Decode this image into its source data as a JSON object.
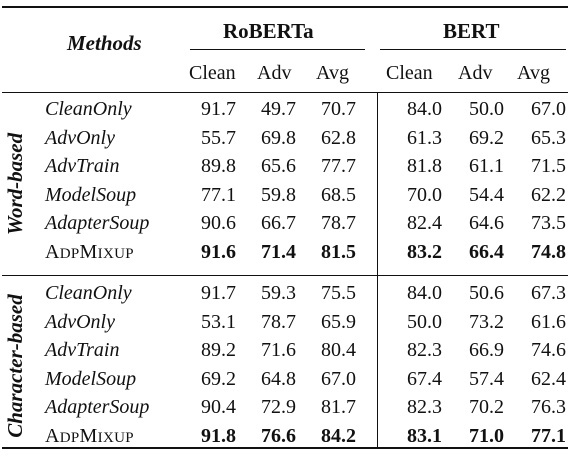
{
  "table": {
    "header": {
      "methods": "Methods",
      "models": [
        "RoBERTa",
        "BERT"
      ],
      "subcols": [
        "Clean",
        "Adv",
        "Avg"
      ]
    },
    "groups": [
      {
        "label": "Word-based",
        "rows": [
          {
            "method": "CleanOnly",
            "italic": true,
            "values": [
              "91.7",
              "49.7",
              "70.7",
              "84.0",
              "50.0",
              "67.0"
            ],
            "bold": false
          },
          {
            "method": "AdvOnly",
            "italic": true,
            "values": [
              "55.7",
              "69.8",
              "62.8",
              "61.3",
              "69.2",
              "65.3"
            ],
            "bold": false
          },
          {
            "method": "AdvTrain",
            "italic": true,
            "values": [
              "89.8",
              "65.6",
              "77.7",
              "81.8",
              "61.1",
              "71.5"
            ],
            "bold": false
          },
          {
            "method": "ModelSoup",
            "italic": true,
            "values": [
              "77.1",
              "59.8",
              "68.5",
              "70.0",
              "54.4",
              "62.2"
            ],
            "bold": false
          },
          {
            "method": "AdapterSoup",
            "italic": true,
            "values": [
              "90.6",
              "66.7",
              "78.7",
              "82.4",
              "64.6",
              "73.5"
            ],
            "bold": false
          },
          {
            "method": "ADPMIXUP",
            "italic": false,
            "values": [
              "91.6",
              "71.4",
              "81.5",
              "83.2",
              "66.4",
              "74.8"
            ],
            "bold": true
          }
        ]
      },
      {
        "label": "Character-based",
        "rows": [
          {
            "method": "CleanOnly",
            "italic": true,
            "values": [
              "91.7",
              "59.3",
              "75.5",
              "84.0",
              "50.6",
              "67.3"
            ],
            "bold": false
          },
          {
            "method": "AdvOnly",
            "italic": true,
            "values": [
              "53.1",
              "78.7",
              "65.9",
              "50.0",
              "73.2",
              "61.6"
            ],
            "bold": false
          },
          {
            "method": "AdvTrain",
            "italic": true,
            "values": [
              "89.2",
              "71.6",
              "80.4",
              "82.3",
              "66.9",
              "74.6"
            ],
            "bold": false
          },
          {
            "method": "ModelSoup",
            "italic": true,
            "values": [
              "69.2",
              "64.8",
              "67.0",
              "67.4",
              "57.4",
              "62.4"
            ],
            "bold": false
          },
          {
            "method": "AdapterSoup",
            "italic": true,
            "values": [
              "90.4",
              "72.9",
              "81.7",
              "82.3",
              "70.2",
              "76.3"
            ],
            "bold": false
          },
          {
            "method": "ADPMIXUP",
            "italic": false,
            "values": [
              "91.8",
              "76.6",
              "84.2",
              "83.1",
              "71.0",
              "77.1"
            ],
            "bold": true
          }
        ]
      }
    ]
  }
}
